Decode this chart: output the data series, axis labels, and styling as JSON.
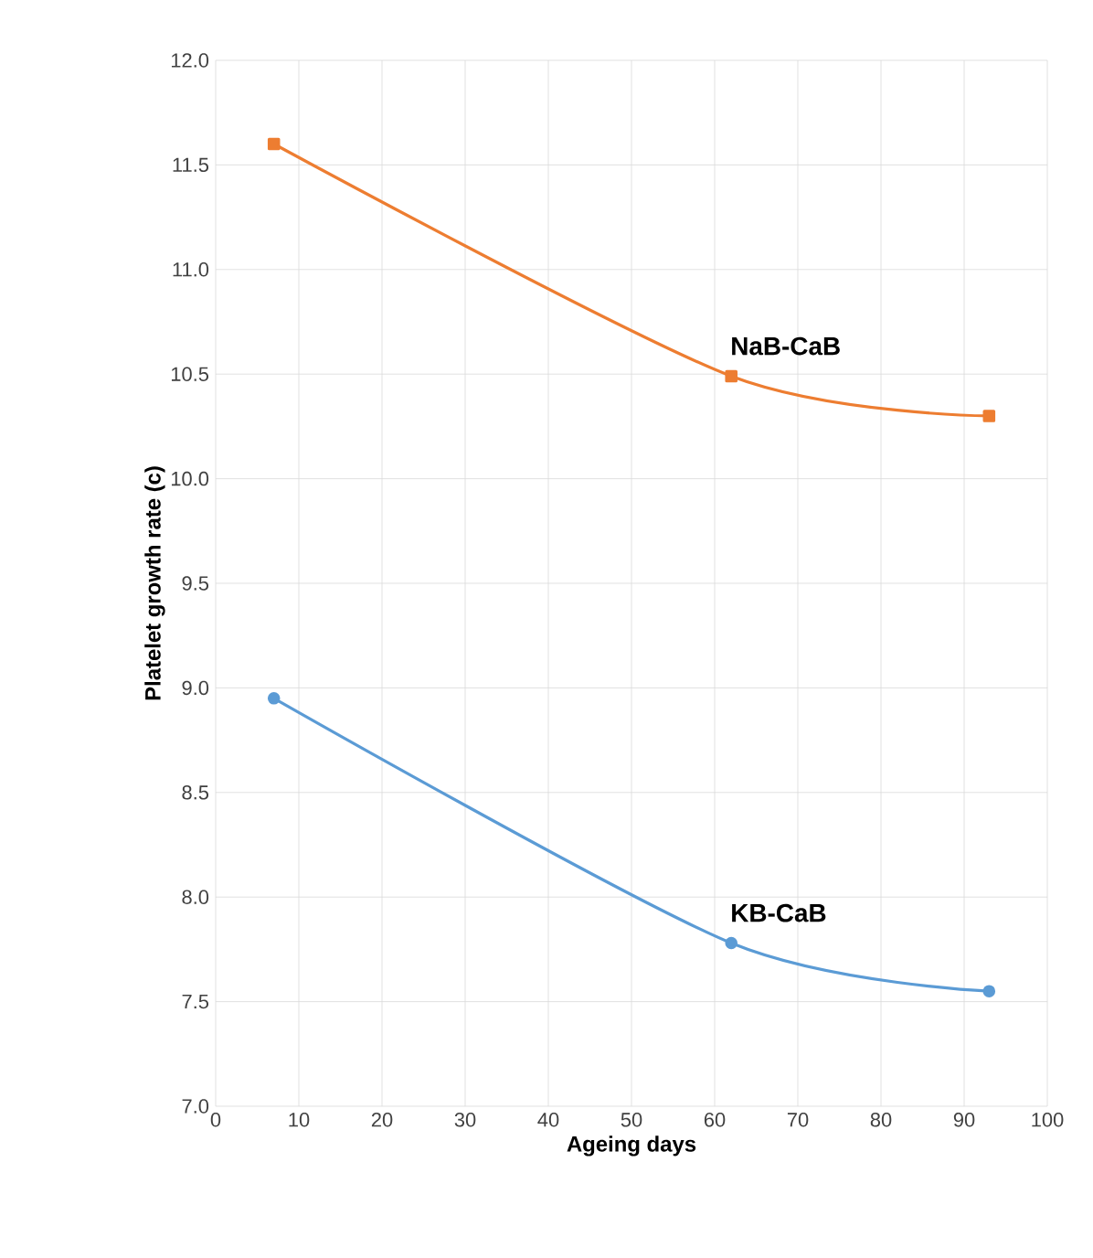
{
  "chart_data": {
    "type": "line",
    "xlabel": "Ageing days",
    "ylabel": "Platelet growth rate (c)",
    "xlim": [
      0,
      100
    ],
    "xticks": [
      0,
      10,
      20,
      30,
      40,
      50,
      60,
      70,
      80,
      90,
      100
    ],
    "ylim": [
      7.0,
      12.0
    ],
    "yticks": [
      {
        "value": 7.0,
        "label": "7.0"
      },
      {
        "value": 7.5,
        "label": "7.5"
      },
      {
        "value": 8.0,
        "label": "8.0"
      },
      {
        "value": 8.5,
        "label": "8.5"
      },
      {
        "value": 9.0,
        "label": "9.0"
      },
      {
        "value": 9.5,
        "label": "9.5"
      },
      {
        "value": 10.0,
        "label": "10.0"
      },
      {
        "value": 10.5,
        "label": "10.5"
      },
      {
        "value": 11.0,
        "label": "11.0"
      },
      {
        "value": 11.5,
        "label": "11.5"
      },
      {
        "value": 12.0,
        "label": "12.0"
      }
    ],
    "grid": true,
    "series": [
      {
        "name": "NaB-CaB",
        "color": "#ed7d31",
        "marker": "square",
        "x": [
          7,
          62,
          93
        ],
        "values": [
          11.6,
          10.49,
          10.3
        ]
      },
      {
        "name": "KB-CaB",
        "color": "#5b9bd5",
        "marker": "circle",
        "x": [
          7,
          62,
          93
        ],
        "values": [
          8.95,
          7.78,
          7.55
        ]
      }
    ]
  }
}
